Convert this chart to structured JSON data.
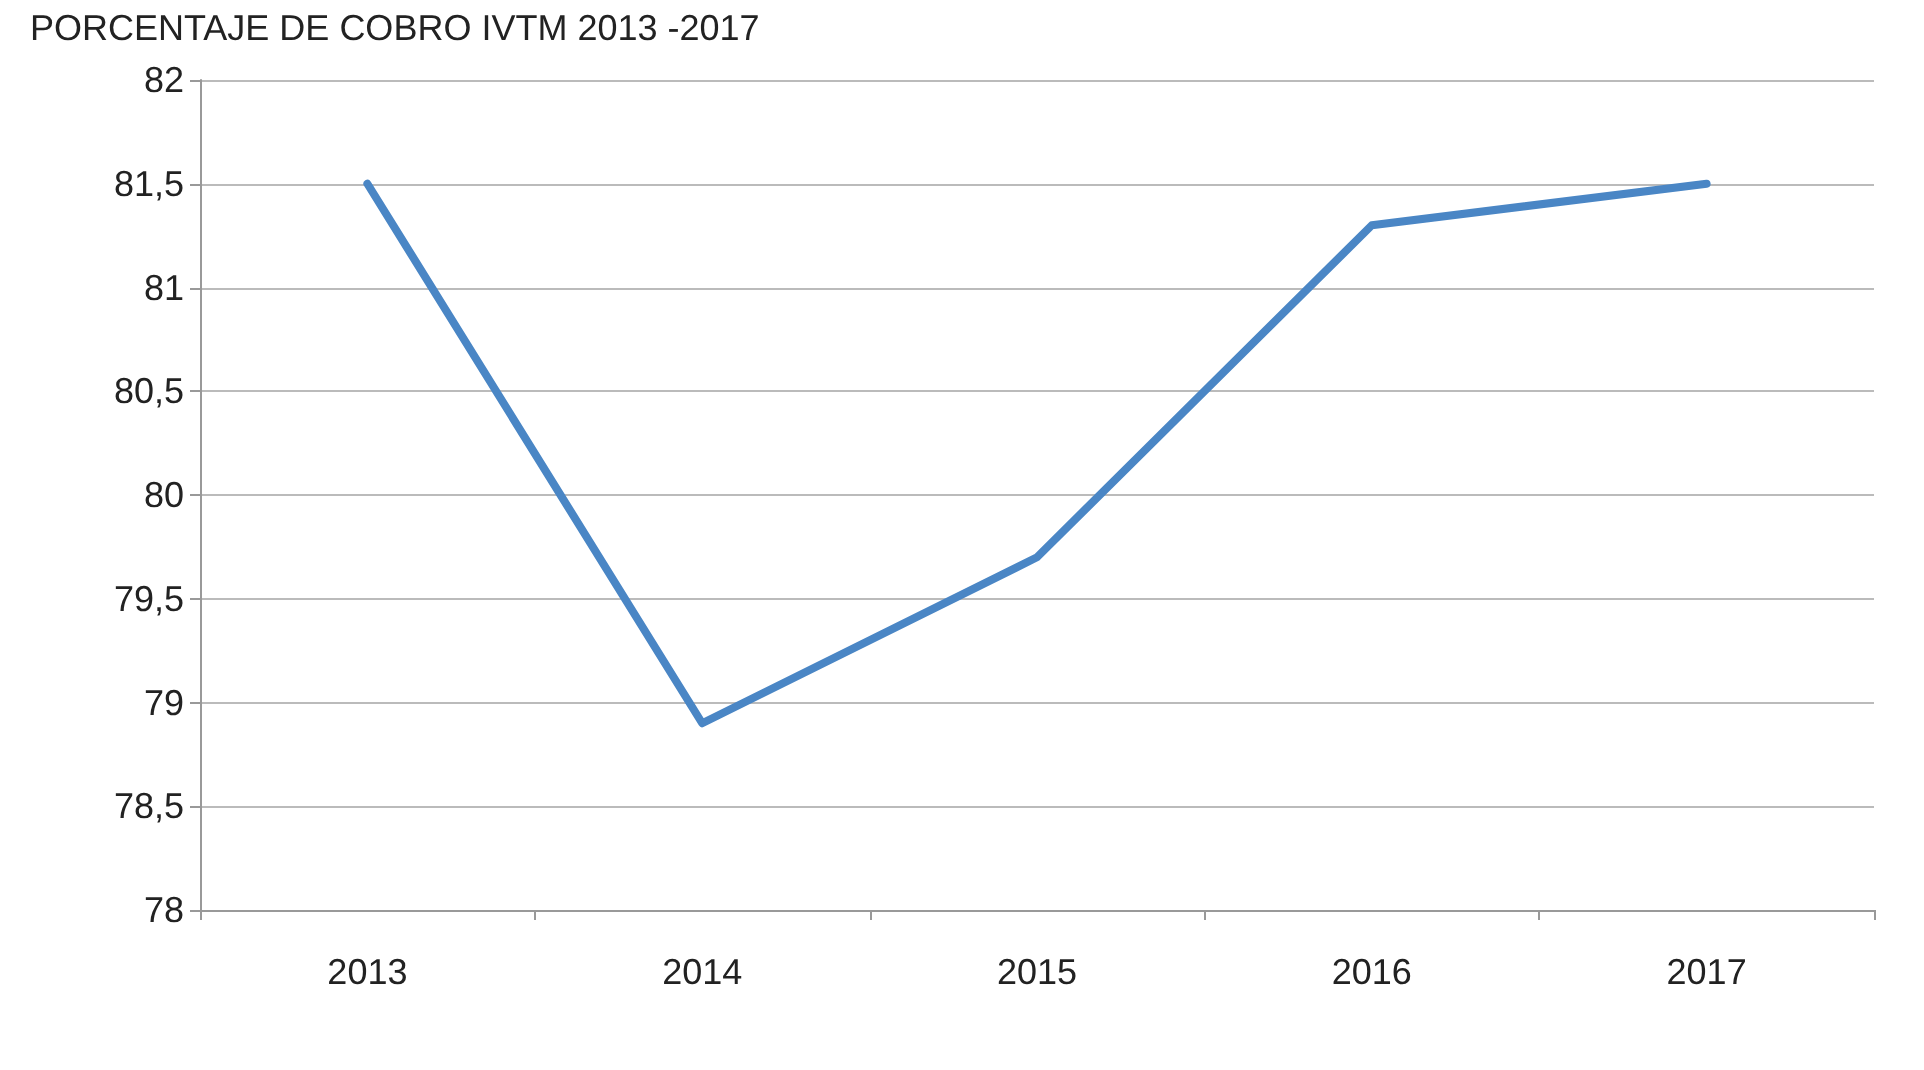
{
  "chart_data": {
    "type": "line",
    "title": "PORCENTAJE DE COBRO IVTM 2013 -2017",
    "categories": [
      "2013",
      "2014",
      "2015",
      "2016",
      "2017"
    ],
    "series": [
      {
        "color": "#4a86c5",
        "values": [
          81.5,
          78.9,
          79.7,
          81.3,
          81.5
        ]
      }
    ],
    "ylim": [
      78,
      82
    ],
    "yticks": [
      78,
      {
        "value": 78.5,
        "label": "78,5"
      },
      79,
      {
        "value": 79.5,
        "label": "79,5"
      },
      80,
      {
        "value": 80.5,
        "label": "80,5"
      },
      81,
      {
        "value": 81.5,
        "label": "81,5"
      },
      82
    ],
    "grid": "y",
    "marker": "none"
  }
}
